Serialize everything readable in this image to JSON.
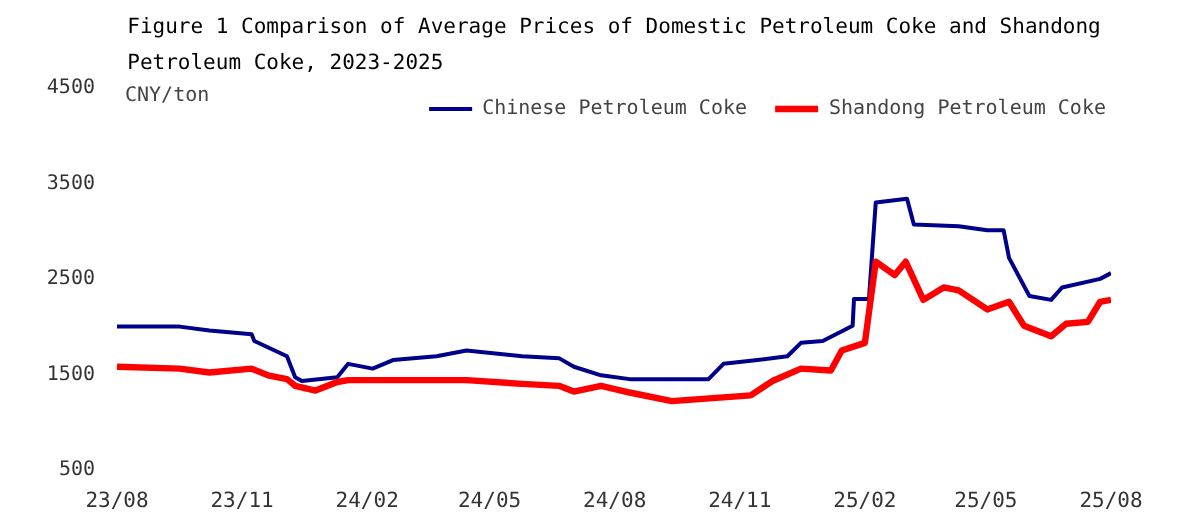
{
  "chart_data": {
    "type": "line",
    "title": "Figure 1 Comparison of Average Prices of Domestic Petroleum Coke and Shandong Petroleum Coke, 2023-2025",
    "ylabel": "CNY/ton",
    "xlim": [
      "2023-08-01",
      "2025-08-01"
    ],
    "ylim": [
      500,
      4500
    ],
    "yticks": [
      500,
      1500,
      2500,
      3500,
      4500
    ],
    "xticks": [
      {
        "value": "2023-08-01",
        "label": "23/08"
      },
      {
        "value": "2023-11-01",
        "label": "23/11"
      },
      {
        "value": "2024-02-01",
        "label": "24/02"
      },
      {
        "value": "2024-05-01",
        "label": "24/05"
      },
      {
        "value": "2024-08-01",
        "label": "24/08"
      },
      {
        "value": "2024-11-01",
        "label": "24/11"
      },
      {
        "value": "2025-02-01",
        "label": "25/02"
      },
      {
        "value": "2025-05-01",
        "label": "25/05"
      },
      {
        "value": "2025-08-01",
        "label": "25/08"
      }
    ],
    "grid": false,
    "legend": "top right",
    "marker": "none",
    "line_style": "solid",
    "series": [
      {
        "name": "Chinese Petroleum Coke",
        "color": "#00008b",
        "x": [
          "2023-08-01",
          "2023-09-16",
          "2023-10-08",
          "2023-11-08",
          "2023-11-10",
          "2023-12-04",
          "2023-12-10",
          "2023-12-15",
          "2024-01-10",
          "2024-01-18",
          "2024-02-05",
          "2024-02-20",
          "2024-03-23",
          "2024-04-14",
          "2024-05-25",
          "2024-06-21",
          "2024-07-02",
          "2024-07-22",
          "2024-08-12",
          "2024-10-09",
          "2024-10-20",
          "2024-11-14",
          "2024-12-06",
          "2024-12-16",
          "2025-01-01",
          "2025-01-23",
          "2025-01-24",
          "2025-02-04",
          "2025-02-09",
          "2025-03-04",
          "2025-03-09",
          "2025-04-11",
          "2025-05-02",
          "2025-05-14",
          "2025-05-18",
          "2025-06-02",
          "2025-06-18",
          "2025-06-26",
          "2025-07-24",
          "2025-08-01"
        ],
        "values": [
          1970,
          1970,
          1930,
          1890,
          1820,
          1660,
          1440,
          1400,
          1440,
          1580,
          1530,
          1620,
          1660,
          1720,
          1660,
          1640,
          1550,
          1460,
          1420,
          1420,
          1580,
          1620,
          1660,
          1800,
          1820,
          1980,
          2260,
          2260,
          3270,
          3310,
          3040,
          3020,
          2980,
          2980,
          2690,
          2290,
          2250,
          2380,
          2470,
          2530
        ]
      },
      {
        "name": "Shandong Petroleum Coke",
        "color": "#ff0000",
        "x": [
          "2023-08-01",
          "2023-09-16",
          "2023-10-08",
          "2023-11-08",
          "2023-11-20",
          "2023-12-04",
          "2023-12-10",
          "2023-12-25",
          "2024-01-10",
          "2024-01-18",
          "2024-02-20",
          "2024-04-14",
          "2024-05-25",
          "2024-06-21",
          "2024-07-02",
          "2024-07-22",
          "2024-08-12",
          "2024-09-12",
          "2024-11-09",
          "2024-11-25",
          "2024-12-16",
          "2025-01-07",
          "2025-01-15",
          "2025-02-01",
          "2025-02-09",
          "2025-02-23",
          "2025-03-03",
          "2025-03-16",
          "2025-03-31",
          "2025-04-11",
          "2025-05-02",
          "2025-05-18",
          "2025-05-29",
          "2025-06-18",
          "2025-06-29",
          "2025-07-15",
          "2025-07-24",
          "2025-08-01"
        ],
        "values": [
          1550,
          1530,
          1490,
          1530,
          1460,
          1420,
          1350,
          1300,
          1390,
          1410,
          1410,
          1410,
          1370,
          1350,
          1290,
          1350,
          1280,
          1190,
          1250,
          1400,
          1530,
          1510,
          1720,
          1800,
          2650,
          2510,
          2650,
          2250,
          2380,
          2350,
          2150,
          2230,
          1980,
          1870,
          2000,
          2020,
          2230,
          2250
        ]
      }
    ]
  }
}
